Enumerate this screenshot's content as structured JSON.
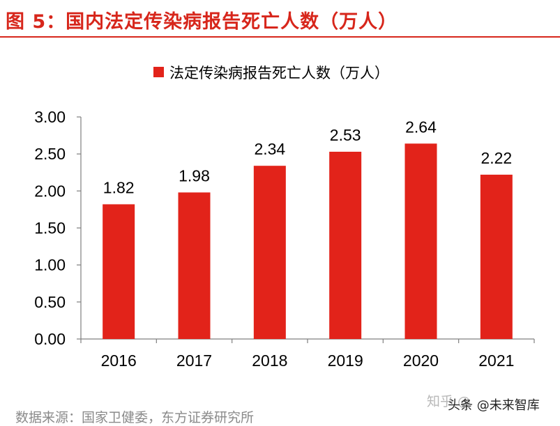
{
  "figure": {
    "title": "图 5：国内法定传染病报告死亡人数（万人）",
    "source": "数据来源：国家卫健委，东方证券研究所",
    "watermark_1": "知乎 @",
    "watermark_2": "头条 @未来智库"
  },
  "colors": {
    "accent": "#d7261b",
    "bar": "#e2231a",
    "axis": "#7f7f7f",
    "text": "#000000"
  },
  "chart_data": {
    "type": "bar",
    "categories": [
      "2016",
      "2017",
      "2018",
      "2019",
      "2020",
      "2021"
    ],
    "series": [
      {
        "name": "法定传染病报告死亡人数（万人）",
        "values": [
          1.82,
          1.98,
          2.34,
          2.53,
          2.64,
          2.22
        ]
      }
    ],
    "data_labels": [
      "1.82",
      "1.98",
      "2.34",
      "2.53",
      "2.64",
      "2.22"
    ],
    "y_ticks": [
      "0.00",
      "0.50",
      "1.00",
      "1.50",
      "2.00",
      "2.50",
      "3.00"
    ],
    "ylim": [
      0,
      3
    ],
    "grid": false,
    "legend_position": "top-center",
    "xlabel": "",
    "ylabel": ""
  }
}
